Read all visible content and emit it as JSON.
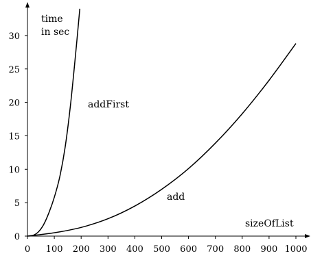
{
  "chart_data": {
    "type": "line",
    "ylabel_lines": [
      "time",
      "in sec"
    ],
    "xlabel": "sizeOfList",
    "xlim": [
      0,
      1000
    ],
    "ylim": [
      0,
      35
    ],
    "xticks": [
      0,
      100,
      200,
      300,
      400,
      500,
      600,
      700,
      800,
      900,
      1000
    ],
    "yticks": [
      0,
      5,
      10,
      15,
      20,
      25,
      30
    ],
    "grid": false,
    "series": [
      {
        "name": "addFirst",
        "x": [
          0,
          20,
          40,
          60,
          80,
          100,
          120,
          140,
          160,
          180,
          195
        ],
        "y": [
          0,
          0.1,
          0.6,
          1.7,
          3.5,
          5.8,
          8.8,
          13.2,
          19.5,
          27.5,
          34
        ]
      },
      {
        "name": "add",
        "x": [
          0,
          100,
          200,
          300,
          400,
          500,
          600,
          700,
          800,
          900,
          1000
        ],
        "y": [
          0,
          0.5,
          1.3,
          2.6,
          4.5,
          7.0,
          10.1,
          13.9,
          18.3,
          23.3,
          28.8
        ]
      }
    ],
    "annotations": [
      "addFirst",
      "add"
    ]
  }
}
